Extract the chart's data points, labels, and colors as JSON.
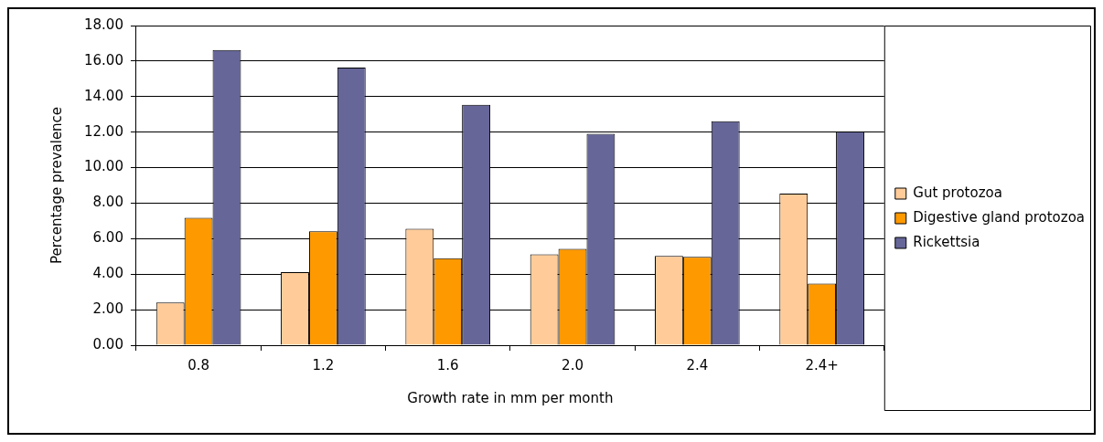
{
  "chart_data": {
    "type": "bar",
    "xlabel": "Growth rate in mm per month",
    "ylabel": "Percentage prevalence",
    "categories": [
      "0.8",
      "1.2",
      "1.6",
      "2.0",
      "2.4",
      "2.4+"
    ],
    "series": [
      {
        "name": "Gut protozoa",
        "color": "#ffcc99",
        "values": [
          2.41,
          4.12,
          6.56,
          5.12,
          5.03,
          8.54
        ]
      },
      {
        "name": "Digestive gland protozoa",
        "color": "#ff9900",
        "values": [
          7.18,
          6.41,
          4.9,
          5.43,
          4.98,
          3.47
        ]
      },
      {
        "name": "Rickettsia",
        "color": "#666699",
        "values": [
          16.63,
          15.64,
          13.54,
          11.91,
          12.61,
          12.03
        ]
      }
    ],
    "ylim": [
      0,
      18
    ],
    "yticks": [
      {
        "value": 0,
        "label": "0.00"
      },
      {
        "value": 2,
        "label": "2.00"
      },
      {
        "value": 4,
        "label": "4.00"
      },
      {
        "value": 6,
        "label": "6.00"
      },
      {
        "value": 8,
        "label": "8.00"
      },
      {
        "value": 10,
        "label": "10.00"
      },
      {
        "value": 12,
        "label": "12.00"
      },
      {
        "value": 14,
        "label": "14.00"
      },
      {
        "value": 16,
        "label": "16.00"
      },
      {
        "value": 18,
        "label": "18.00"
      }
    ],
    "grid": "y",
    "legend": "right"
  }
}
